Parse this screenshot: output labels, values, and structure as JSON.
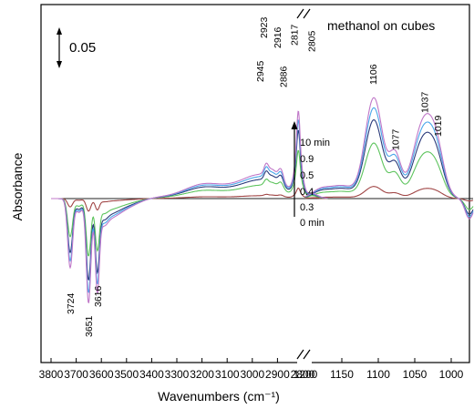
{
  "chart_data": {
    "type": "line",
    "title": "methanol on cubes",
    "xlabel": "Wavenumbers (cm⁻¹)",
    "ylabel": "Absorbance",
    "scale_bar": "0.05",
    "x_axis_break": "//",
    "xlim_left_panel": [
      3800,
      2700
    ],
    "xlim_right_panel": [
      1200,
      970
    ],
    "x_ticks_left": [
      3800,
      3700,
      3600,
      3500,
      3400,
      3300,
      3200,
      3100,
      3000,
      2900,
      2800
    ],
    "x_ticks_right": [
      1200,
      1150,
      1100,
      1050,
      1000
    ],
    "x_tick_labels_left": [
      "3800",
      "3700",
      "3600",
      "3500",
      "3400",
      "3300",
      "3200",
      "3100",
      "3000",
      "2900",
      "2800"
    ],
    "x_tick_labels_right": [
      "1200",
      "1150",
      "1100",
      "1050",
      "1000"
    ],
    "peak_labels": [
      "2923",
      "2916",
      "2945",
      "2886",
      "2817",
      "2805",
      "1106",
      "1077",
      "1037",
      "1019",
      "3724",
      "3651",
      "3616"
    ],
    "time_labels": [
      "10 min",
      "0.9",
      "0.5",
      "0.4",
      "0.3",
      "0 min"
    ],
    "colors": {
      "0 min": "#222222",
      "0.3": "#a04545",
      "0.4": "#5ec45e",
      "0.5": "#2a3a7a",
      "0.9": "#4aa6ea",
      "10 min": "#c078c8"
    },
    "series": [
      {
        "name": "0 min",
        "scale": 0
      },
      {
        "name": "0.3",
        "scale": 0.12
      },
      {
        "name": "0.4",
        "scale": 0.55
      },
      {
        "name": "0.5",
        "scale": 0.78
      },
      {
        "name": "0.9",
        "scale": 0.9
      },
      {
        "name": "10 min",
        "scale": 1.0
      }
    ]
  }
}
